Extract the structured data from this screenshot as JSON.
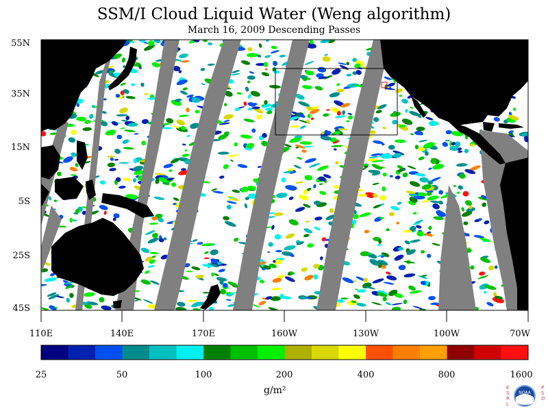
{
  "title": "SSM/I Cloud Liquid Water (Weng algorithm)",
  "subtitle": "March 16, 2009  Descending Passes",
  "lat_labels": [
    "55N",
    "35N",
    "15N",
    "5S",
    "25S",
    "45S"
  ],
  "lon_labels": [
    "110E",
    "140E",
    "170E",
    "160W",
    "130W",
    "100W",
    "70W"
  ],
  "colorbar": {
    "labels": [
      "25",
      "50",
      "100",
      "200",
      "400",
      "800",
      "1600"
    ],
    "unit": "g/m²",
    "colors": [
      "#000080",
      "#0020b0",
      "#0050f0",
      "#008c8c",
      "#00c0c0",
      "#00f0f0",
      "#008000",
      "#00c000",
      "#00f000",
      "#b0b000",
      "#d8d800",
      "#ffff00",
      "#ff5000",
      "#ff8000",
      "#ffa000",
      "#900000",
      "#d00000",
      "#ff1010"
    ]
  },
  "logo": {
    "left_text": "ESRL",
    "right_text": "PSD",
    "center_text": "NOAA"
  },
  "colors": {
    "land": "#000000",
    "no_data": "#808080",
    "ocean_clear": "#ffffff"
  }
}
